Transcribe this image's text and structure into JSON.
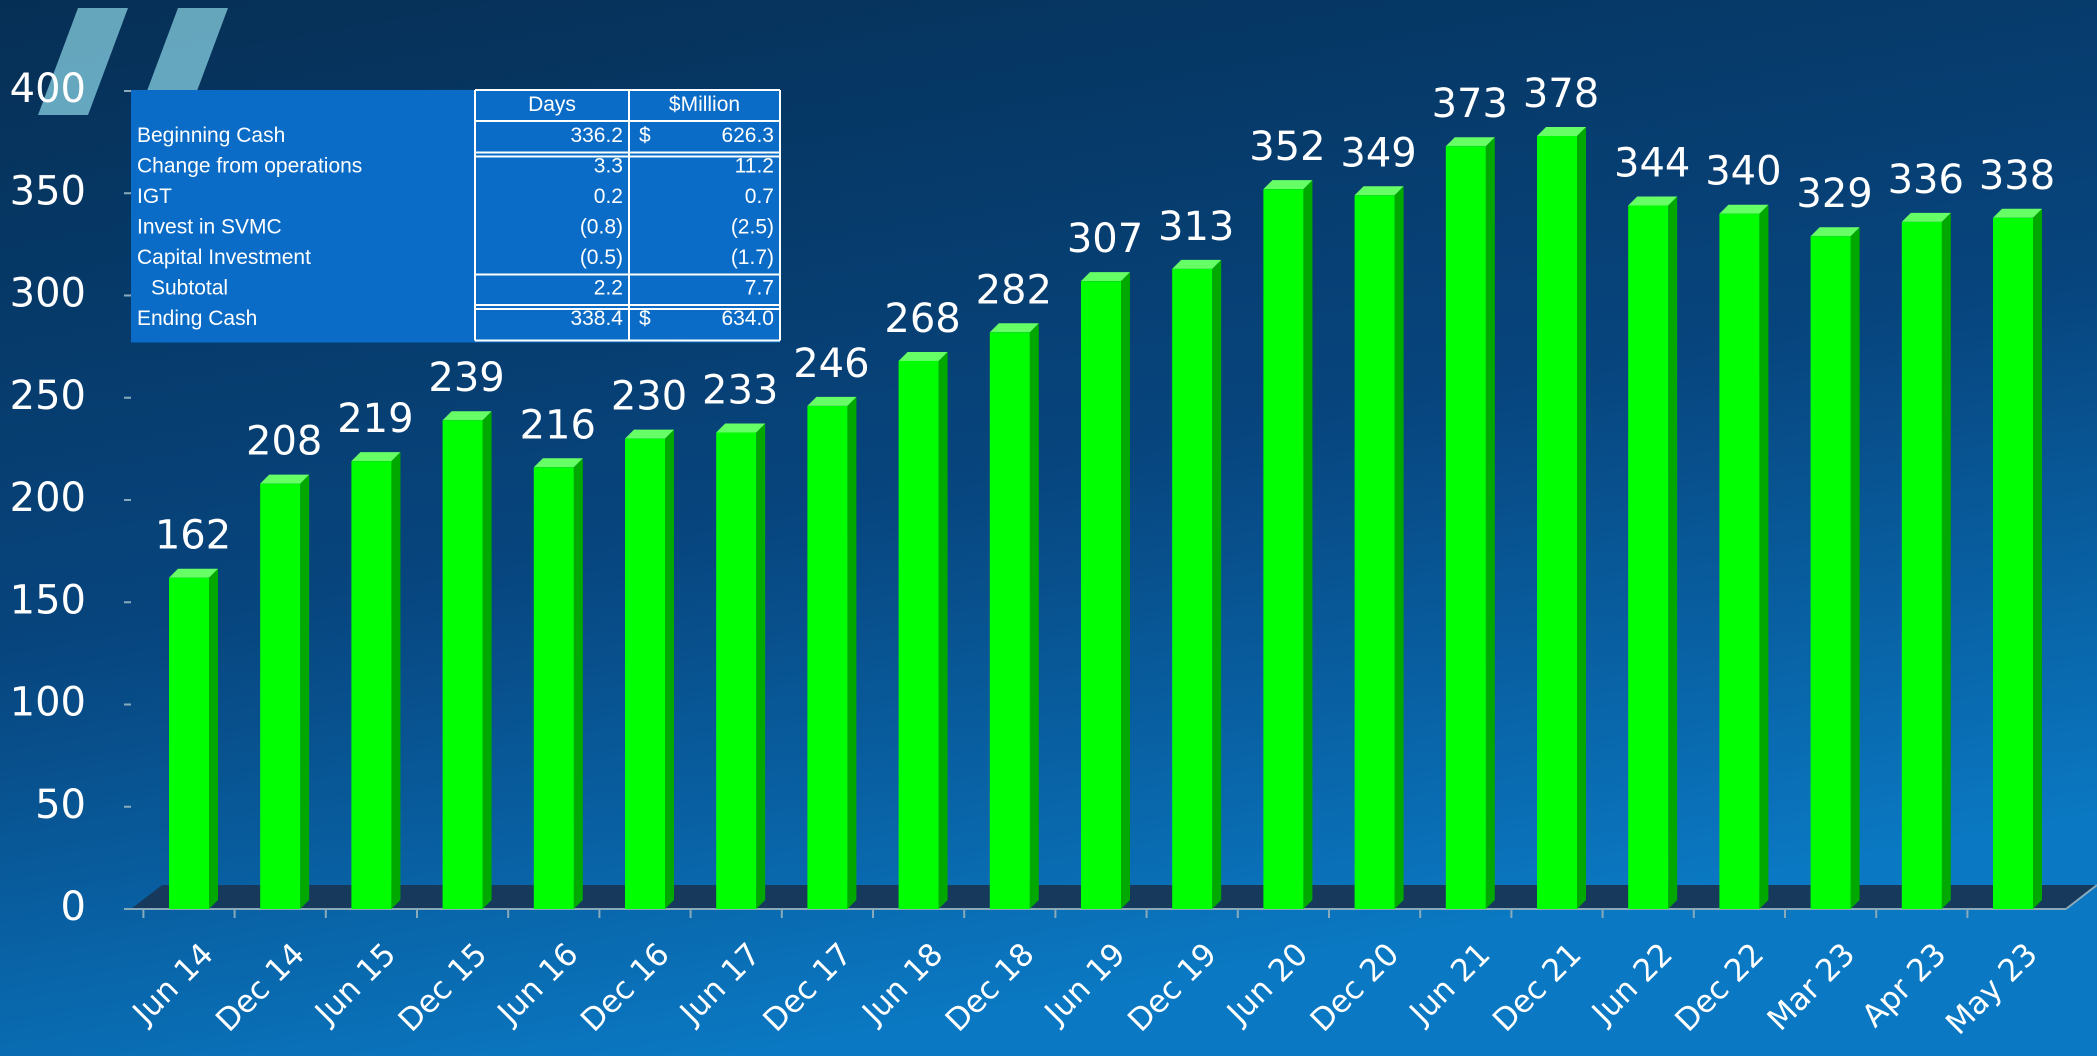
{
  "chart_data": {
    "type": "bar",
    "categories": [
      "Jun 14",
      "Dec 14",
      "Jun 15",
      "Dec 15",
      "Jun 16",
      "Dec 16",
      "Jun 17",
      "Dec 17",
      "Jun 18",
      "Dec 18",
      "Jun 19",
      "Dec 19",
      "Jun 20",
      "Dec 20",
      "Jun 21",
      "Dec 21",
      "Jun 22",
      "Dec 22",
      "Mar 23",
      "Apr 23",
      "May 23"
    ],
    "values": [
      162,
      208,
      219,
      239,
      216,
      230,
      233,
      246,
      268,
      282,
      307,
      313,
      352,
      349,
      373,
      378,
      344,
      340,
      329,
      336,
      338
    ],
    "color": "#00ff00",
    "ylim": [
      0,
      400
    ],
    "yticks": [
      0,
      50,
      100,
      150,
      200,
      250,
      300,
      350,
      400
    ],
    "grid": false
  },
  "table": {
    "header": [
      "Days",
      "$Million"
    ],
    "rows": [
      {
        "label": "Beginning Cash",
        "days": "336.2",
        "currency": "$",
        "million": "626.3"
      },
      {
        "label": "Change from operations",
        "days": "3.3",
        "million": "11.2"
      },
      {
        "label": "IGT",
        "days": "0.2",
        "million": "0.7"
      },
      {
        "label": "Invest in SVMC",
        "days": "(0.8)",
        "million": "(2.5)"
      },
      {
        "label": "Capital Investment",
        "days": "(0.5)",
        "million": "(1.7)"
      },
      {
        "label": "Subtotal",
        "days": "2.2",
        "million": "7.7"
      },
      {
        "label": "Ending Cash",
        "days": "338.4",
        "currency": "$",
        "million": "634.0"
      }
    ]
  }
}
